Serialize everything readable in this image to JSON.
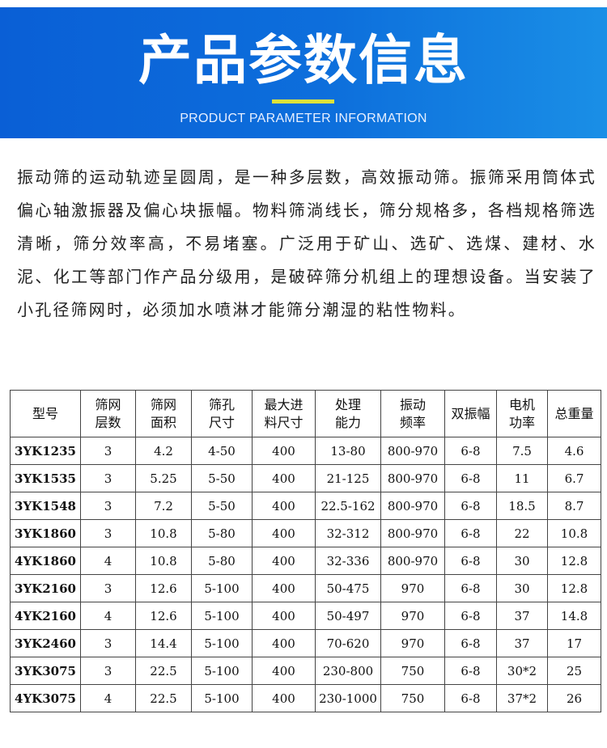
{
  "header": {
    "title": "产品参数信息",
    "subtitle": "PRODUCT PARAMETER INFORMATION"
  },
  "description": "振动筛的运动轨迹呈圆周，是一种多层数，高效振动筛。振筛采用筒体式偏心轴激振器及偏心块振幅。物料筛淌线长，筛分规格多，各档规格筛选清晰，筛分效率高，不易堵塞。广泛用于矿山、选矿、选煤、建材、水泥、化工等部门作产品分级用，是破碎筛分机组上的理想设备。当安装了小孔径筛网时，必须加水喷淋才能筛分潮湿的粘性物料。",
  "table": {
    "headers": [
      [
        "型号"
      ],
      [
        "筛网",
        "层数"
      ],
      [
        "筛网",
        "面积"
      ],
      [
        "筛孔",
        "尺寸"
      ],
      [
        "最大进",
        "料尺寸"
      ],
      [
        "处理",
        "能力"
      ],
      [
        "振动",
        "频率"
      ],
      [
        "双振幅"
      ],
      [
        "电机",
        "功率"
      ],
      [
        "总重量"
      ]
    ],
    "rows": [
      [
        "3YK1235",
        "3",
        "4.2",
        "4-50",
        "400",
        "13-80",
        "800-970",
        "6-8",
        "7.5",
        "4.6"
      ],
      [
        "3YK1535",
        "3",
        "5.25",
        "5-50",
        "400",
        "21-125",
        "800-970",
        "6-8",
        "11",
        "6.7"
      ],
      [
        "3YK1548",
        "3",
        "7.2",
        "5-50",
        "400",
        "22.5-162",
        "800-970",
        "6-8",
        "18.5",
        "8.7"
      ],
      [
        "3YK1860",
        "3",
        "10.8",
        "5-80",
        "400",
        "32-312",
        "800-970",
        "6-8",
        "22",
        "10.8"
      ],
      [
        "4YK1860",
        "4",
        "10.8",
        "5-80",
        "400",
        "32-336",
        "800-970",
        "6-8",
        "30",
        "12.8"
      ],
      [
        "3YK2160",
        "3",
        "12.6",
        "5-100",
        "400",
        "50-475",
        "970",
        "6-8",
        "30",
        "12.8"
      ],
      [
        "4YK2160",
        "4",
        "12.6",
        "5-100",
        "400",
        "50-497",
        "970",
        "6-8",
        "37",
        "14.8"
      ],
      [
        "3YK2460",
        "3",
        "14.4",
        "5-100",
        "400",
        "70-620",
        "970",
        "6-8",
        "37",
        "17"
      ],
      [
        "3YK3075",
        "3",
        "22.5",
        "5-100",
        "400",
        "230-800",
        "750",
        "6-8",
        "30*2",
        "25"
      ],
      [
        "4YK3075",
        "4",
        "22.5",
        "5-100",
        "400",
        "230-1000",
        "750",
        "6-8",
        "37*2",
        "26"
      ]
    ]
  }
}
